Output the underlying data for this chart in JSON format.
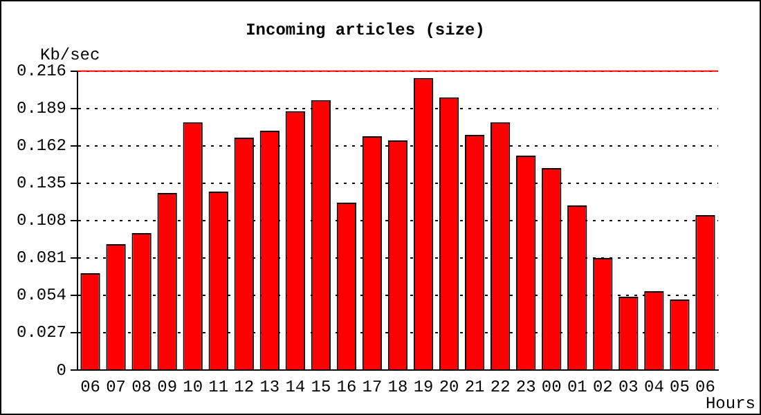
{
  "chart_data": {
    "type": "bar",
    "title": "Incoming articles (size)",
    "ylabel": "Kb/sec",
    "xlabel": "Hours",
    "categories": [
      "06",
      "07",
      "08",
      "09",
      "10",
      "11",
      "12",
      "13",
      "14",
      "15",
      "16",
      "17",
      "18",
      "19",
      "20",
      "21",
      "22",
      "23",
      "00",
      "01",
      "02",
      "03",
      "04",
      "05",
      "06"
    ],
    "values": [
      0.07,
      0.091,
      0.099,
      0.128,
      0.179,
      0.129,
      0.168,
      0.173,
      0.187,
      0.195,
      0.121,
      0.169,
      0.166,
      0.211,
      0.197,
      0.17,
      0.179,
      0.155,
      0.146,
      0.119,
      0.081,
      0.053,
      0.057,
      0.051,
      0.112
    ],
    "color": "#ff0000",
    "ylim": [
      0,
      0.216
    ],
    "yticks": [
      0,
      0.027,
      0.054,
      0.081,
      0.108,
      0.135,
      0.162,
      0.189,
      0.216
    ],
    "ref_lines": [
      {
        "axis": "y",
        "value": 0.216,
        "color": "#ff0000"
      }
    ],
    "grid": "y",
    "legend": false
  }
}
